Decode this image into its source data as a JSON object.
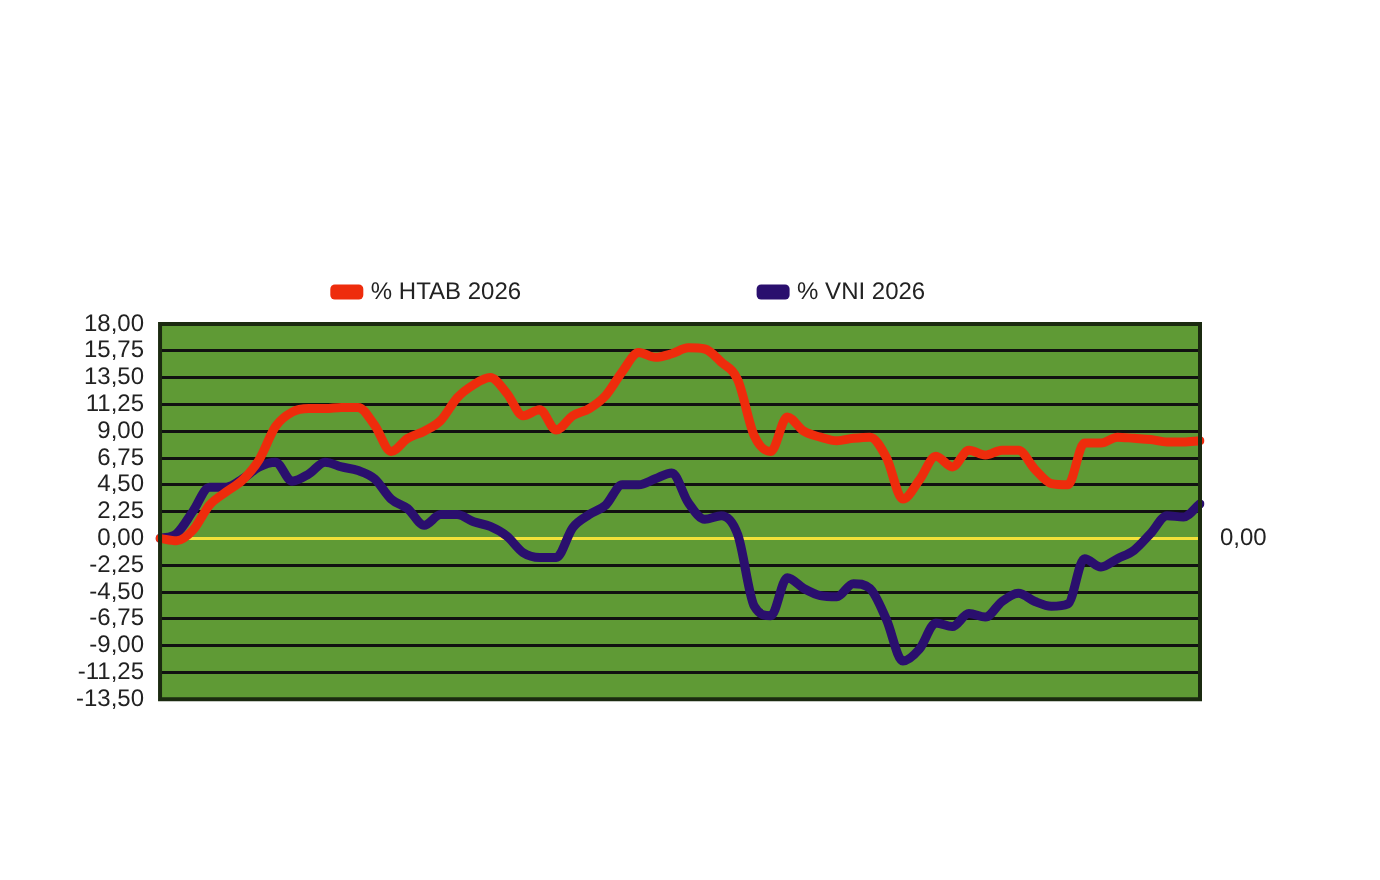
{
  "chart_data": {
    "type": "line",
    "categories": [
      null,
      null,
      null,
      null,
      null,
      null,
      null,
      null,
      null,
      null,
      null,
      null,
      null,
      null,
      null,
      null,
      null,
      null,
      null,
      null,
      null,
      null,
      null,
      null,
      null,
      null,
      null,
      null,
      null,
      null,
      null,
      null,
      null,
      null,
      null,
      null,
      null,
      null,
      null,
      null,
      null,
      null,
      null,
      null,
      null,
      null,
      null,
      null,
      null,
      null,
      null,
      null,
      null,
      null,
      null,
      null,
      null,
      null,
      null,
      null,
      null,
      null,
      null,
      null
    ],
    "series": [
      {
        "name": "% HTAB 2026",
        "color": "#ee2c0c",
        "values": [
          0,
          -0.2,
          0.7,
          2.8,
          3.9,
          4.9,
          6.6,
          9.4,
          10.6,
          10.9,
          10.9,
          11.0,
          11.0,
          9.5,
          7.3,
          8.4,
          9.0,
          9.9,
          11.8,
          12.9,
          13.5,
          12.2,
          10.3,
          10.8,
          9.1,
          10.3,
          10.9,
          12.0,
          14.0,
          15.6,
          15.2,
          15.5,
          16.0,
          15.9,
          14.8,
          13.3,
          8.6,
          7.3,
          10.2,
          9.0,
          8.5,
          8.2,
          8.4,
          8.5,
          6.8,
          3.3,
          4.9,
          6.9,
          6.0,
          7.4,
          7.0,
          7.4,
          7.4,
          5.8,
          4.6,
          4.5,
          8.0,
          8.0,
          8.5,
          8.4,
          8.3,
          8.1,
          8.1,
          8.2
        ]
      },
      {
        "name": "% VNI 2026",
        "color": "#2a0f6e",
        "values": [
          0,
          0.4,
          2.3,
          4.3,
          4.3,
          5.0,
          6.0,
          6.4,
          4.8,
          5.4,
          6.4,
          6.0,
          5.7,
          5.0,
          3.3,
          2.5,
          1.1,
          2.0,
          2.0,
          1.4,
          1.0,
          0.2,
          -1.2,
          -1.6,
          -1.6,
          0.9,
          2.0,
          2.8,
          4.5,
          4.5,
          5.0,
          5.5,
          3.0,
          1.6,
          1.9,
          0.3,
          -5.7,
          -6.5,
          -3.3,
          -4.2,
          -4.8,
          -4.9,
          -3.8,
          -4.2,
          -6.8,
          -10.3,
          -9.3,
          -7.1,
          -7.4,
          -6.3,
          -6.6,
          -5.3,
          -4.6,
          -5.3,
          -5.7,
          -5.5,
          -1.7,
          -2.4,
          -1.7,
          -1.0,
          0.4,
          1.9,
          1.8,
          2.9
        ]
      }
    ],
    "ylim": [
      -13.5,
      18
    ],
    "yticks": [
      {
        "value": -13.5,
        "label": "-13,50"
      },
      {
        "value": -11.25,
        "label": "-11,25"
      },
      {
        "value": -9,
        "label": "-9,00"
      },
      {
        "value": -6.75,
        "label": "-6,75"
      },
      {
        "value": -4.5,
        "label": "-4,50"
      },
      {
        "value": -2.25,
        "label": "-2,25"
      },
      {
        "value": 0,
        "label": "0,00"
      },
      {
        "value": 2.25,
        "label": "2,25"
      },
      {
        "value": 4.5,
        "label": "4,50"
      },
      {
        "value": 6.75,
        "label": "6,75"
      },
      {
        "value": 9,
        "label": "9,00"
      },
      {
        "value": 11.25,
        "label": "11,25"
      },
      {
        "value": 13.5,
        "label": "13,50"
      },
      {
        "value": 15.75,
        "label": "15,75"
      },
      {
        "value": 18,
        "label": "18,00"
      }
    ],
    "ref_lines": [
      {
        "axis": "y",
        "value": 0,
        "label": "0,00",
        "color": "#f2e13a"
      }
    ],
    "grid": "y",
    "legend": "top",
    "marker": "none",
    "line_style": "solid"
  }
}
